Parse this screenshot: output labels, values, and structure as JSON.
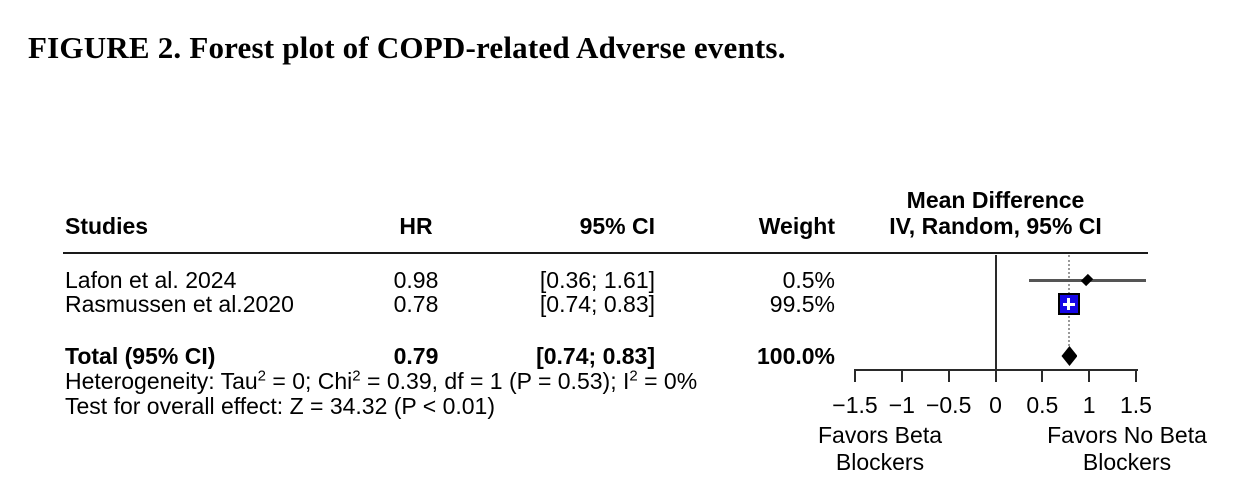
{
  "figure": {
    "title": "FIGURE 2. Forest plot of COPD-related Adverse events."
  },
  "table": {
    "headers": {
      "studies": "Studies",
      "hr": "HR",
      "ci": "95% CI",
      "weight": "Weight",
      "effect_line1": "Mean Difference",
      "effect_line2": "IV, Random, 95% CI"
    },
    "rows": [
      {
        "study": "Lafon et al. 2024",
        "hr": "0.98",
        "ci": "[0.36; 1.61]",
        "weight": "0.5%"
      },
      {
        "study": "Rasmussen et al.2020",
        "hr": "0.78",
        "ci": "[0.74; 0.83]",
        "weight": "99.5%"
      }
    ],
    "total": {
      "study": "Total (95% CI)",
      "hr": "0.79",
      "ci": "[0.74; 0.83]",
      "weight": "100.0%"
    },
    "heterogeneity": {
      "p1": "Heterogeneity: Tau",
      "s1": "2",
      "p2": " = 0; Chi",
      "s2": "2",
      "p3": " = 0.39, df = 1 (P = 0.53); I",
      "s3": "2",
      "p4": " = 0%"
    },
    "overall_effect": "Test for overall effect: Z = 34.32 (P < 0.01)"
  },
  "chart_data": {
    "type": "forest",
    "title": "FIGURE 2. Forest plot of COPD-related Adverse events.",
    "effect_measure": "HR",
    "effect_header": [
      "Mean Difference",
      "IV, Random, 95% CI"
    ],
    "studies": [
      {
        "name": "Lafon et al. 2024",
        "estimate": 0.98,
        "ci_low": 0.36,
        "ci_high": 1.61,
        "weight_pct": 0.5
      },
      {
        "name": "Rasmussen et al.2020",
        "estimate": 0.78,
        "ci_low": 0.74,
        "ci_high": 0.83,
        "weight_pct": 99.5
      }
    ],
    "pooled": {
      "label": "Total (95% CI)",
      "estimate": 0.79,
      "ci_low": 0.74,
      "ci_high": 0.83,
      "weight_pct": 100.0,
      "model": "IV, Random"
    },
    "heterogeneity": {
      "tau2": 0,
      "chi2": 0.39,
      "df": 1,
      "p": 0.53,
      "i2_pct": 0
    },
    "overall_effect_test": {
      "z": 34.32,
      "p": "< 0.01"
    },
    "axis": {
      "min": -1.5,
      "max": 1.5,
      "ticks": [
        -1.5,
        -1,
        -0.5,
        0,
        0.5,
        1,
        1.5
      ],
      "tick_labels": [
        "−1.5",
        "−1",
        "−0.5",
        "0",
        "0.5",
        "1",
        "1.5"
      ],
      "zero_line": 0,
      "pooled_line": 0.79,
      "left_label": "Favors Beta Blockers",
      "right_label": "Favors No Beta Blockers",
      "grid": false
    },
    "style": {
      "square_color": "#1606e6",
      "ci_line_color": "#555555",
      "diamond_color": "#000000",
      "axis_color": "#2a2a2a",
      "dotted_line_color": "#9a9a9a"
    }
  }
}
